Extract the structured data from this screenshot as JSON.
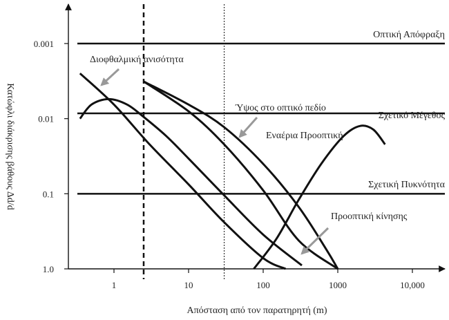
{
  "chart_data": {
    "type": "line",
    "xlabel": "Απόσταση από τον παρατηρητή (m)",
    "ylabel": "Κατώφλι διάκρισης βάθους Δd/d",
    "x_scale": "log",
    "y_scale": "log",
    "y_inverted": true,
    "xlim": [
      0.3,
      30000
    ],
    "ylim": [
      0.0004,
      1.0
    ],
    "x_ticks": [
      {
        "value": 1,
        "label": "1"
      },
      {
        "value": 10,
        "label": "10"
      },
      {
        "value": 100,
        "label": "100"
      },
      {
        "value": 1000,
        "label": "1000"
      },
      {
        "value": 10000,
        "label": "10,000"
      }
    ],
    "y_ticks": [
      {
        "value": 0.001,
        "label": "0.001"
      },
      {
        "value": 0.01,
        "label": "0.01"
      },
      {
        "value": 0.1,
        "label": "0.1"
      },
      {
        "value": 1.0,
        "label": "1.0"
      }
    ],
    "vertical_lines": [
      {
        "x": 2.5,
        "style": "dashed"
      },
      {
        "x": 30,
        "style": "dotted"
      }
    ],
    "series": [
      {
        "name": "Οπτική Απόφραξη",
        "kind": "constant",
        "x": [
          0.3,
          30000
        ],
        "y": [
          0.001,
          0.001
        ]
      },
      {
        "name": "Σχετικό Μέγεθος",
        "kind": "constant",
        "x": [
          0.3,
          30000
        ],
        "y": [
          0.0085,
          0.0085
        ]
      },
      {
        "name": "Σχετική Πυκνότητα",
        "kind": "constant",
        "x": [
          0.3,
          30000
        ],
        "y": [
          0.1,
          0.1
        ]
      },
      {
        "name": "Διοφθαλμική ανισότητα",
        "kind": "curve",
        "x": [
          0.35,
          1,
          3,
          10,
          30,
          100,
          200
        ],
        "y": [
          0.0025,
          0.0065,
          0.022,
          0.075,
          0.24,
          0.72,
          1.0
        ]
      },
      {
        "name": "",
        "kind": "curve",
        "x": [
          0.35,
          0.5,
          0.85,
          1.5,
          2.5,
          5,
          10,
          30,
          100,
          330
        ],
        "y": [
          0.01,
          0.0065,
          0.0055,
          0.0065,
          0.0095,
          0.017,
          0.034,
          0.105,
          0.35,
          0.9
        ]
      },
      {
        "name": "Ύψος στο οπτικό πεδίο",
        "kind": "curve",
        "x": [
          2.5,
          10,
          30,
          100,
          300,
          700,
          1000
        ],
        "y": [
          0.0032,
          0.0065,
          0.013,
          0.04,
          0.15,
          0.55,
          1.0
        ]
      },
      {
        "name": "Εναέρια Προοπτική",
        "kind": "curve",
        "x": [
          75,
          150,
          300,
          600,
          1200,
          2000,
          3000,
          4300
        ],
        "y": [
          1.0,
          0.4,
          0.12,
          0.04,
          0.017,
          0.0125,
          0.014,
          0.022
        ]
      },
      {
        "name": "Προοπτική κίνησης",
        "kind": "curve",
        "x": [
          2.5,
          10,
          30,
          100,
          300,
          1000
        ],
        "y": [
          0.0032,
          0.008,
          0.022,
          0.09,
          0.42,
          1.0
        ]
      }
    ],
    "annotations": [
      {
        "text": "Οπτική Απόφραξη",
        "target": "Οπτική Απόφραξη"
      },
      {
        "text": "Διοφθαλμική ανισότητα",
        "target": "Διοφθαλμική ανισότητα"
      },
      {
        "text": "Ύψος στο οπτικό πεδίο",
        "target": "Ύψος στο οπτικό πεδίο"
      },
      {
        "text": "Σχετικό Μέγεθος",
        "target": "Σχετικό Μέγεθος"
      },
      {
        "text": "Εναέρια Προοπτική",
        "target": "Εναέρια Προοπτική"
      },
      {
        "text": "Σχετική Πυκνότητα",
        "target": "Σχετική Πυκνότητα"
      },
      {
        "text": "Προοπτική κίνησης",
        "target": "Προοπτική κίνησης"
      }
    ]
  }
}
